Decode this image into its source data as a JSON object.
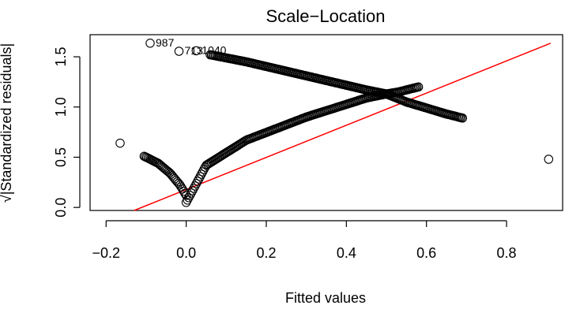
{
  "chart_data": {
    "type": "scatter",
    "title": "Scale−Location",
    "xlabel": "Fitted values",
    "ylabel": "√|Standardized residuals|",
    "xlim": [
      -0.24,
      0.94
    ],
    "ylim": [
      -0.03,
      1.72
    ],
    "x_ticks": [
      -0.2,
      0.0,
      0.2,
      0.4,
      0.6,
      0.8
    ],
    "x_tick_labels": [
      "−0.2",
      "0.0",
      "0.2",
      "0.4",
      "0.6",
      "0.8"
    ],
    "y_ticks": [
      0.0,
      0.5,
      1.0,
      1.5
    ],
    "y_tick_labels": [
      "0.0",
      "0.5",
      "1.0",
      "1.5"
    ],
    "grid": false,
    "legend": "none",
    "point_color": "#000000",
    "smooth_color": "#ff0000",
    "points": [
      {
        "x": -0.165,
        "y": 0.64
      },
      {
        "x": 0.905,
        "y": 0.48
      },
      {
        "x": -0.09,
        "y": 1.635
      },
      {
        "x": -0.018,
        "y": 1.555
      },
      {
        "x": 0.025,
        "y": 1.56
      }
    ],
    "bands": [
      {
        "name": "lower-left branch",
        "x": [
          -0.105,
          -0.07,
          -0.04,
          -0.015,
          0.0
        ],
        "y": [
          0.51,
          0.44,
          0.34,
          0.22,
          0.12
        ]
      },
      {
        "name": "lower-right branch",
        "x": [
          0.0,
          0.05,
          0.15,
          0.3,
          0.45,
          0.5
        ],
        "y": [
          0.05,
          0.42,
          0.67,
          0.9,
          1.09,
          1.13
        ]
      },
      {
        "name": "upper branch",
        "x": [
          0.06,
          0.15,
          0.3,
          0.45,
          0.5
        ],
        "y": [
          1.52,
          1.45,
          1.31,
          1.17,
          1.13
        ]
      },
      {
        "name": "falling tail",
        "x": [
          0.5,
          0.55,
          0.6,
          0.65,
          0.69
        ],
        "y": [
          1.13,
          1.05,
          0.99,
          0.93,
          0.89
        ]
      },
      {
        "name": "rising tail",
        "x": [
          0.5,
          0.53,
          0.56,
          0.58
        ],
        "y": [
          1.13,
          1.15,
          1.18,
          1.2
        ]
      }
    ],
    "smooth_line": {
      "x": [
        -0.13,
        0.91
      ],
      "y": [
        -0.03,
        1.635
      ]
    },
    "annotations": [
      {
        "text": "987",
        "x": -0.09,
        "y": 1.635
      },
      {
        "text": "713",
        "x": -0.018,
        "y": 1.555
      },
      {
        "text": "1040",
        "x": 0.025,
        "y": 1.56
      }
    ]
  }
}
